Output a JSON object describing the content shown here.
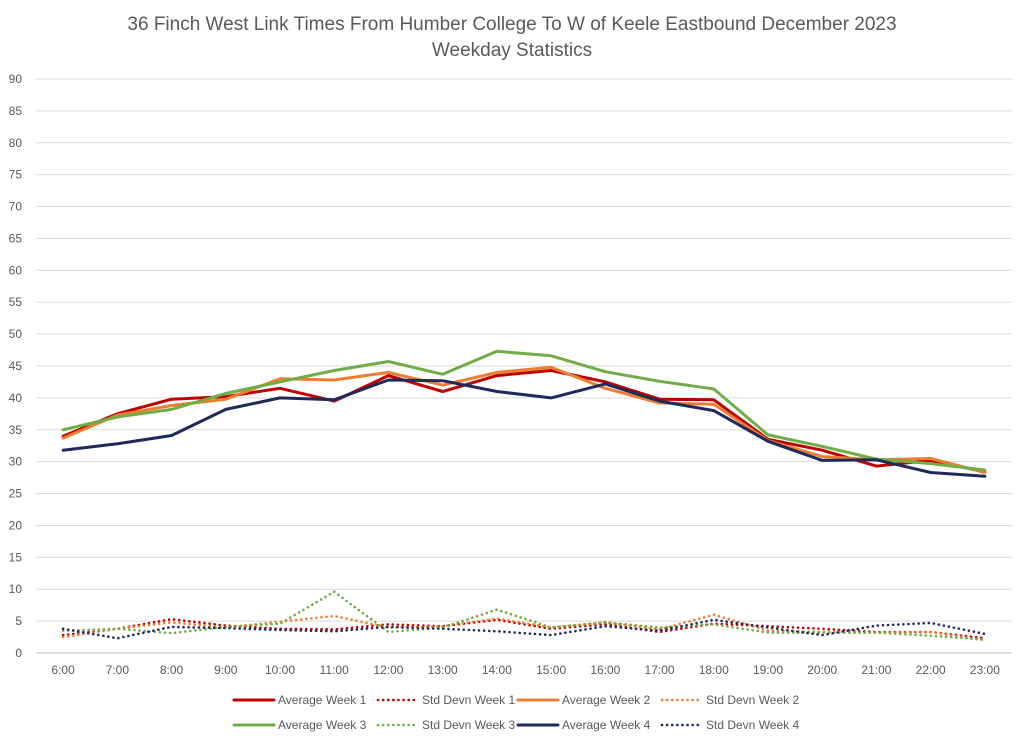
{
  "chart_data": {
    "type": "line",
    "title": "36 Finch West Link Times From Humber College To W of Keele Eastbound December 2023",
    "subtitle": "Weekday Statistics",
    "xlabel": "",
    "ylabel": "",
    "ylim": [
      0,
      90
    ],
    "ytick_step": 5,
    "grid": true,
    "legend_position": "bottom",
    "categories": [
      "6:00",
      "7:00",
      "8:00",
      "9:00",
      "10:00",
      "11:00",
      "12:00",
      "13:00",
      "14:00",
      "15:00",
      "16:00",
      "17:00",
      "18:00",
      "19:00",
      "20:00",
      "21:00",
      "22:00",
      "23:00"
    ],
    "series": [
      {
        "name": "Average Week 1",
        "color": "#C00000",
        "style": "solid",
        "values": [
          34.0,
          37.5,
          39.8,
          40.2,
          41.5,
          39.5,
          43.5,
          41.0,
          43.5,
          44.3,
          42.5,
          39.8,
          39.7,
          33.5,
          31.8,
          29.3,
          30.2,
          28.4
        ]
      },
      {
        "name": "Std Devn Week 1",
        "color": "#C00000",
        "style": "dotted",
        "values": [
          2.8,
          3.8,
          5.3,
          4.3,
          3.8,
          3.7,
          4.5,
          4.2,
          5.2,
          3.8,
          4.5,
          3.3,
          4.6,
          4.2,
          3.8,
          3.3,
          3.3,
          2.3
        ]
      },
      {
        "name": "Average Week 2",
        "color": "#ED7D31",
        "style": "solid",
        "values": [
          33.7,
          37.3,
          38.8,
          39.8,
          43.0,
          42.8,
          44.0,
          42.0,
          44.0,
          44.8,
          41.5,
          39.2,
          39.0,
          33.3,
          30.8,
          30.3,
          30.5,
          28.3
        ]
      },
      {
        "name": "Std Devn Week 2",
        "color": "#ED7D31",
        "style": "dotted",
        "values": [
          2.5,
          3.8,
          4.8,
          4.0,
          4.9,
          5.8,
          4.0,
          4.2,
          5.4,
          4.0,
          4.8,
          3.7,
          6.0,
          3.5,
          3.3,
          3.2,
          3.3,
          2.0
        ]
      },
      {
        "name": "Average Week 3",
        "color": "#70AD47",
        "style": "solid",
        "values": [
          35.0,
          37.0,
          38.2,
          40.7,
          42.5,
          44.3,
          45.7,
          43.7,
          47.3,
          46.6,
          44.1,
          42.6,
          41.4,
          34.2,
          32.4,
          30.4,
          29.7,
          28.7
        ]
      },
      {
        "name": "Std Devn Week 3",
        "color": "#70AD47",
        "style": "dotted",
        "values": [
          3.5,
          3.8,
          3.1,
          4.1,
          4.6,
          9.6,
          3.3,
          4.0,
          6.8,
          4.0,
          4.8,
          4.0,
          4.5,
          3.2,
          3.2,
          3.2,
          2.7,
          2.1
        ]
      },
      {
        "name": "Average Week 4",
        "color": "#1F2A5C",
        "style": "solid",
        "values": [
          31.8,
          32.8,
          34.1,
          38.2,
          40.0,
          39.7,
          42.8,
          42.7,
          41.0,
          40.0,
          42.2,
          39.5,
          38.0,
          33.2,
          30.2,
          30.3,
          28.3,
          27.7
        ]
      },
      {
        "name": "Std Devn Week 4",
        "color": "#1F2A5C",
        "style": "dotted",
        "values": [
          3.8,
          2.3,
          4.1,
          3.9,
          3.6,
          3.4,
          4.1,
          3.8,
          3.4,
          2.8,
          4.2,
          3.5,
          5.2,
          4.0,
          2.8,
          4.3,
          4.7,
          3.0
        ]
      }
    ]
  }
}
